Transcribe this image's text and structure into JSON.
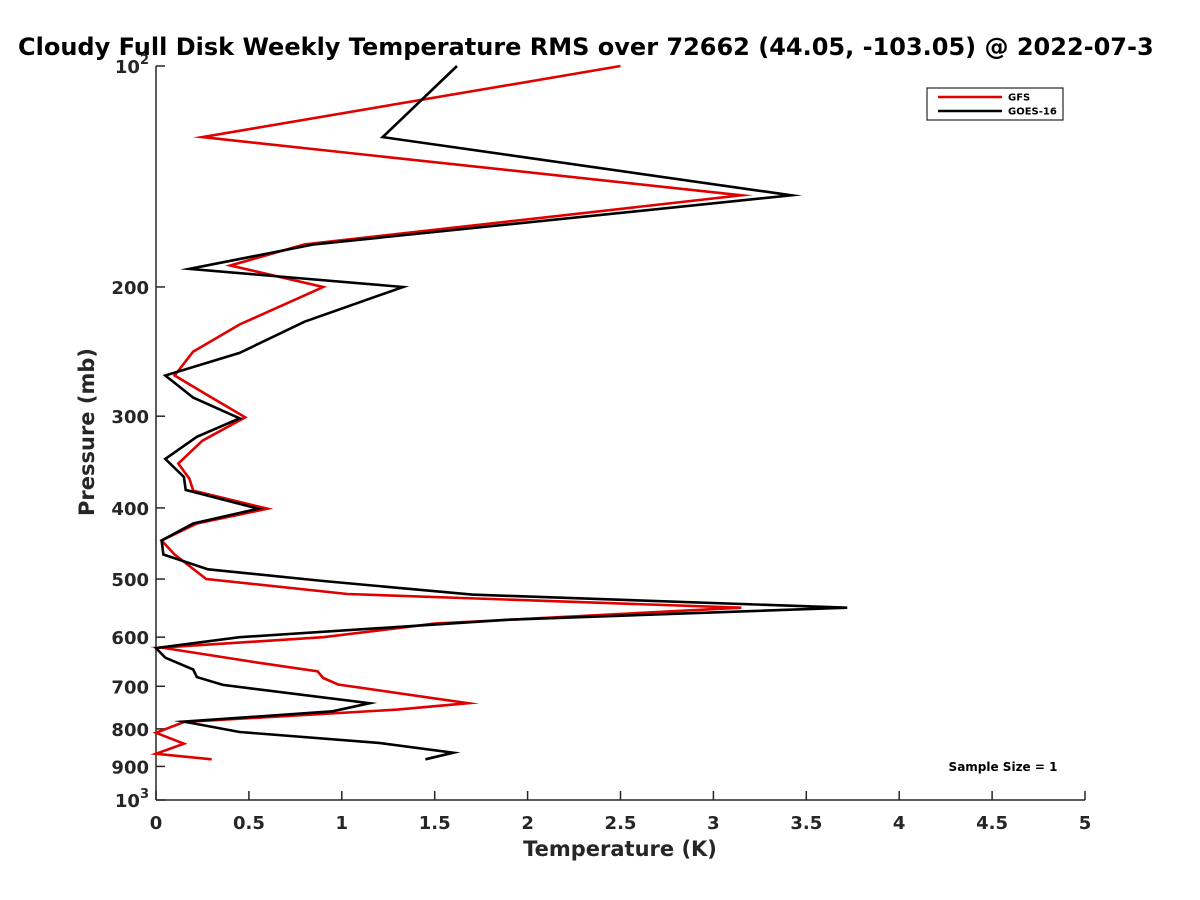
{
  "chart_data": {
    "type": "line",
    "title": "Cloudy Full Disk Weekly Temperature RMS over 72662 (44.05, -103.05) @ 2022-07-3",
    "xlabel": "Temperature (K)",
    "ylabel": "Pressure (mb)",
    "xlim": [
      0,
      5
    ],
    "ylim": [
      100,
      1000
    ],
    "y_scale": "log",
    "y_reversed": true,
    "grid": false,
    "legend_placement": "top-right",
    "x_ticks": [
      "0",
      "0.5",
      "1",
      "1.5",
      "2",
      "2.5",
      "3",
      "3.5",
      "4",
      "4.5",
      "5"
    ],
    "y_ticks": [
      {
        "value": 100,
        "label": "10",
        "sup": "2"
      },
      {
        "value": 200,
        "label": "200"
      },
      {
        "value": 300,
        "label": "300"
      },
      {
        "value": 400,
        "label": "400"
      },
      {
        "value": 500,
        "label": "500"
      },
      {
        "value": 600,
        "label": "600"
      },
      {
        "value": 700,
        "label": "700"
      },
      {
        "value": 800,
        "label": "800"
      },
      {
        "value": 900,
        "label": "900"
      },
      {
        "value": 1000,
        "label": "10",
        "sup": "3"
      }
    ],
    "annotation": "Sample Size = 1",
    "series": [
      {
        "name": "GFS",
        "color": "#e00000",
        "points": [
          [
            2.5,
            100
          ],
          [
            0.25,
            125
          ],
          [
            3.15,
            150
          ],
          [
            0.8,
            175
          ],
          [
            0.4,
            187
          ],
          [
            0.9,
            200
          ],
          [
            0.45,
            225
          ],
          [
            0.2,
            245
          ],
          [
            0.1,
            264
          ],
          [
            0.3,
            283
          ],
          [
            0.48,
            301
          ],
          [
            0.25,
            324
          ],
          [
            0.12,
            348
          ],
          [
            0.18,
            365
          ],
          [
            0.2,
            379
          ],
          [
            0.6,
            401
          ],
          [
            0.22,
            420
          ],
          [
            0.03,
            443
          ],
          [
            0.1,
            463
          ],
          [
            0.27,
            500
          ],
          [
            1.03,
            524
          ],
          [
            3.15,
            547
          ],
          [
            1.5,
            575
          ],
          [
            0.9,
            600
          ],
          [
            0.03,
            620
          ],
          [
            0.55,
            650
          ],
          [
            0.87,
            668
          ],
          [
            0.9,
            682
          ],
          [
            0.98,
            696
          ],
          [
            1.68,
            738
          ],
          [
            1.3,
            753
          ],
          [
            0.15,
            783
          ],
          [
            0.0,
            810
          ],
          [
            0.15,
            838
          ],
          [
            0.0,
            865
          ],
          [
            0.3,
            880
          ]
        ]
      },
      {
        "name": "GOES-16",
        "color": "#000000",
        "points": [
          [
            1.62,
            100
          ],
          [
            1.22,
            125
          ],
          [
            3.42,
            150
          ],
          [
            0.85,
            175
          ],
          [
            0.18,
            189
          ],
          [
            1.33,
            200
          ],
          [
            0.8,
            223
          ],
          [
            0.45,
            246
          ],
          [
            0.05,
            264
          ],
          [
            0.2,
            283
          ],
          [
            0.45,
            302
          ],
          [
            0.22,
            320
          ],
          [
            0.05,
            343
          ],
          [
            0.15,
            363
          ],
          [
            0.16,
            378
          ],
          [
            0.55,
            401
          ],
          [
            0.2,
            420
          ],
          [
            0.03,
            443
          ],
          [
            0.04,
            463
          ],
          [
            0.28,
            485
          ],
          [
            0.9,
            503
          ],
          [
            1.7,
            525
          ],
          [
            3.72,
            547
          ],
          [
            1.9,
            568
          ],
          [
            0.45,
            600
          ],
          [
            0.0,
            621
          ],
          [
            0.05,
            640
          ],
          [
            0.2,
            664
          ],
          [
            0.22,
            680
          ],
          [
            0.36,
            697
          ],
          [
            1.15,
            738
          ],
          [
            0.95,
            757
          ],
          [
            0.15,
            782
          ],
          [
            0.45,
            808
          ],
          [
            1.2,
            836
          ],
          [
            1.6,
            862
          ],
          [
            1.45,
            880
          ]
        ]
      }
    ]
  }
}
